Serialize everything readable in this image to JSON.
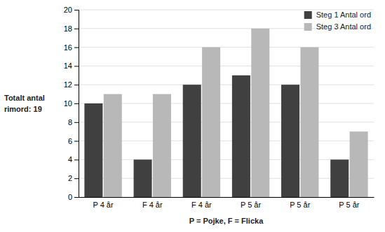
{
  "chart_data": {
    "type": "bar",
    "categories": [
      "P 4 år",
      "F 4 år",
      "F 4 år",
      "P 5 år",
      "P 5 år",
      "P 5 år"
    ],
    "series": [
      {
        "name": "Steg 1 Antal ord",
        "color": "#404040",
        "values": [
          10,
          4,
          12,
          13,
          12,
          4
        ]
      },
      {
        "name": "Steg 3 Antal ord",
        "color": "#b8b8b8",
        "values": [
          11,
          11,
          16,
          18,
          16,
          7
        ]
      }
    ],
    "xlabel": "P = Pojke, F = Flicka",
    "ylabel": [
      "Totalt antal",
      "rimord: 19"
    ],
    "ylim": [
      0,
      20
    ],
    "yticks": [
      0,
      2,
      4,
      6,
      8,
      10,
      12,
      14,
      16,
      18,
      20
    ],
    "grid": true,
    "legend": "upper right"
  }
}
